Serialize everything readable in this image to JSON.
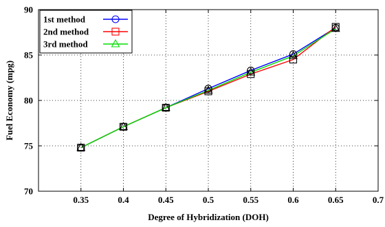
{
  "chart_data": {
    "type": "line",
    "title": "",
    "xlabel": "Degree of Hybridization (DOH)",
    "ylabel": "Fuel Economy (mpg)",
    "xlim": [
      0.3,
      0.7
    ],
    "ylim": [
      70,
      90
    ],
    "xticks": [
      0.35,
      0.4,
      0.45,
      0.5,
      0.55,
      0.6,
      0.65,
      0.7
    ],
    "xtick_labels": [
      "0.35",
      "0.4",
      "0.45",
      "0.5",
      "0.55",
      "0.6",
      "0.65",
      "0.7"
    ],
    "yticks": [
      70,
      75,
      80,
      85,
      90
    ],
    "ytick_labels": [
      "70",
      "75",
      "80",
      "85",
      "90"
    ],
    "grid": true,
    "legend_position": "top-left",
    "x": [
      0.35,
      0.4,
      0.45,
      0.5,
      0.55,
      0.6,
      0.65
    ],
    "series": [
      {
        "name": "1st method",
        "color": "#0000ff",
        "marker": "circle",
        "values": [
          74.8,
          77.1,
          79.2,
          81.3,
          83.3,
          85.1,
          88.0
        ]
      },
      {
        "name": "2nd method",
        "color": "#ff0000",
        "marker": "square",
        "values": [
          74.8,
          77.1,
          79.2,
          81.0,
          82.9,
          84.5,
          88.1
        ]
      },
      {
        "name": "3rd method",
        "color": "#00dd00",
        "marker": "triangle",
        "values": [
          74.8,
          77.1,
          79.2,
          81.1,
          83.1,
          84.9,
          87.9
        ]
      }
    ]
  }
}
